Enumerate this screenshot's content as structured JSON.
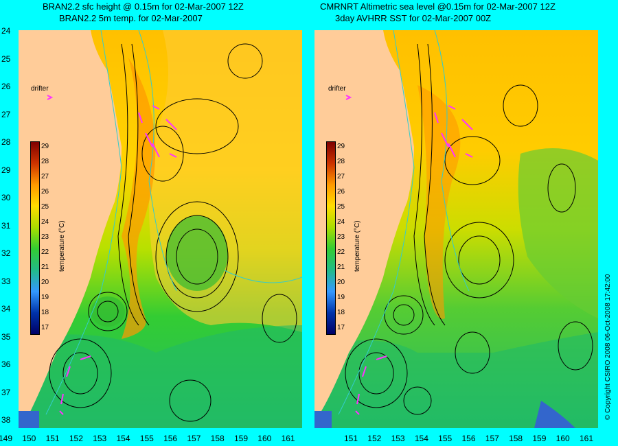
{
  "titles": {
    "left_line1": "BRAN2.2 sfc height @ 0.15m for 02-Mar-2007 12Z",
    "left_line2": "BRAN2.2 5m temp. for 02-Mar-2007",
    "right_line1": "CMRNRT Altimetric sea level  @0.15m  for 02-Mar-2007 12Z",
    "right_line2": "3day AVHRR SST for 02-Mar-2007 00Z"
  },
  "y_axis_labels": [
    "24",
    "25",
    "26",
    "27",
    "28",
    "29",
    "30",
    "31",
    "32",
    "33",
    "34",
    "35",
    "36",
    "37",
    "38"
  ],
  "x_axis_labels": [
    "149",
    "150",
    "151",
    "152",
    "153",
    "154",
    "155",
    "156",
    "157",
    "158",
    "159",
    "160",
    "161"
  ],
  "x_axis_labels_right": [
    "151",
    "152",
    "153",
    "154",
    "155",
    "156",
    "157",
    "158",
    "159",
    "160",
    "161"
  ],
  "colorbar": {
    "ticks": [
      "29",
      "28",
      "27",
      "26",
      "25",
      "24",
      "23",
      "22",
      "21",
      "20",
      "19",
      "18",
      "17"
    ],
    "label": "temperature (°C)"
  },
  "drifter_label": "drifter",
  "copyright": "© Copyright CSIRO 2008    06-Oct-2008 17:42:00",
  "colors": {
    "background": "#00ffff",
    "land": "#ffcc99",
    "drifter": "#ff33ff",
    "contour": "#000000",
    "isobath": "#33cccc"
  }
}
